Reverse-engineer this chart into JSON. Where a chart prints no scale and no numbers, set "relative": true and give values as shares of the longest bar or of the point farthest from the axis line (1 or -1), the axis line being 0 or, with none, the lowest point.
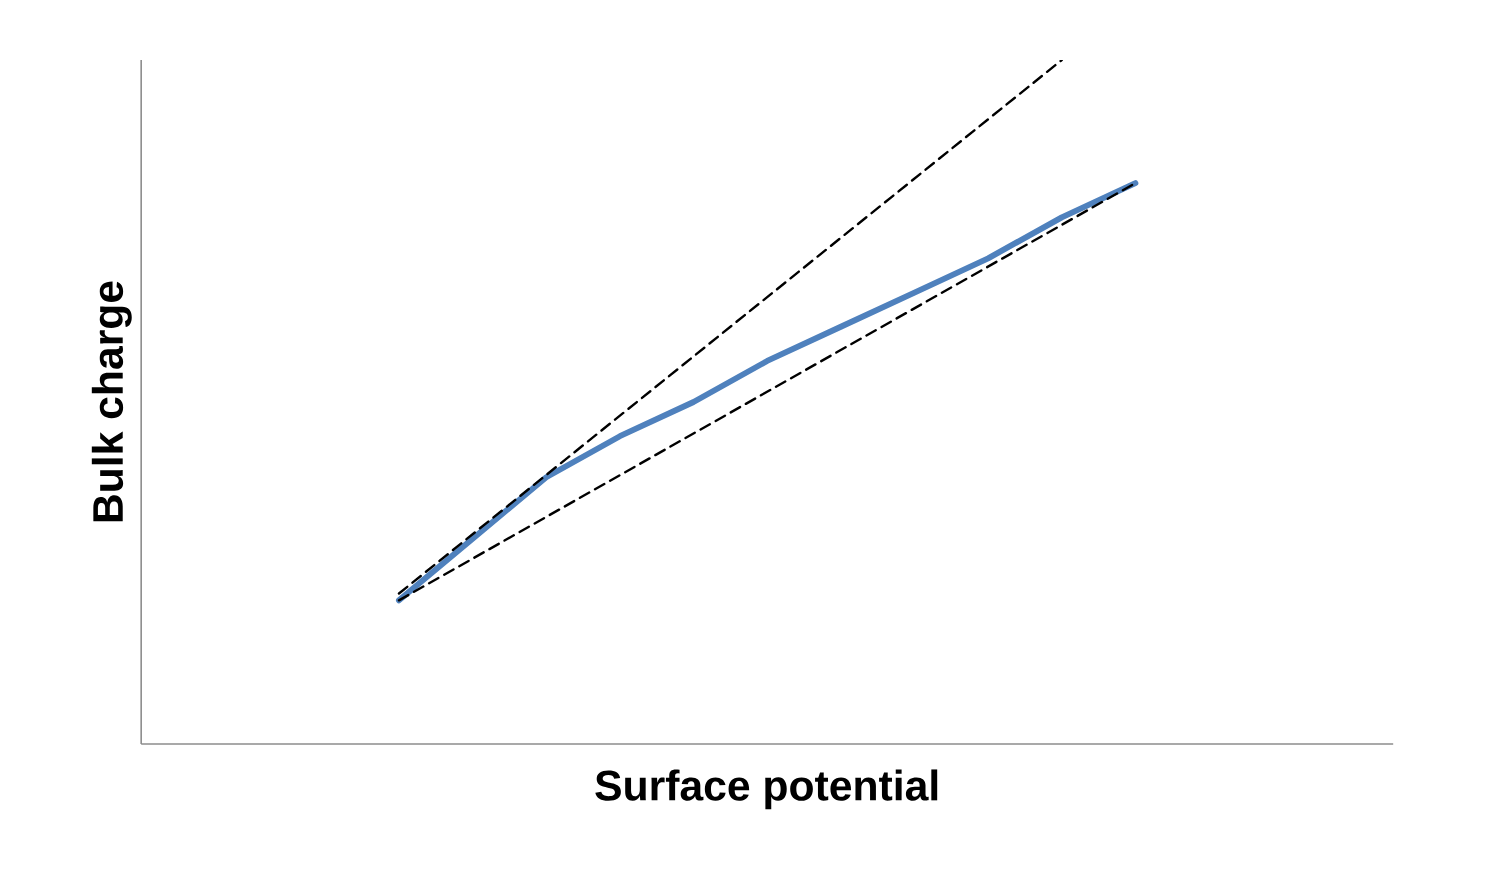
{
  "chart_data": {
    "type": "line",
    "relative": true,
    "xlabel": "Surface potential",
    "ylabel": "Bulk charge",
    "marker": "none",
    "categories": [
      null,
      null,
      null,
      null,
      null,
      null,
      null,
      null,
      null,
      null,
      null,
      null,
      null,
      null,
      null,
      null,
      null
    ],
    "series": [
      {
        "color": "#4f81bd",
        "line_style": "solid",
        "values": [
          null,
          null,
          null,
          0.21,
          0.3,
          0.39,
          0.45,
          0.5,
          0.56,
          0.61,
          0.66,
          0.71,
          0.77,
          0.82,
          null,
          null,
          null
        ]
      },
      {
        "color": "#000000",
        "line_style": "dashed",
        "values": [
          null,
          null,
          null,
          0.22,
          null,
          null,
          null,
          null,
          null,
          null,
          null,
          null,
          1,
          null,
          null,
          null,
          null
        ]
      },
      {
        "color": "#000000",
        "line_style": "dashed",
        "values": [
          null,
          null,
          null,
          0.21,
          null,
          null,
          null,
          null,
          null,
          null,
          null,
          null,
          null,
          0.82,
          null,
          null,
          null
        ]
      }
    ]
  }
}
